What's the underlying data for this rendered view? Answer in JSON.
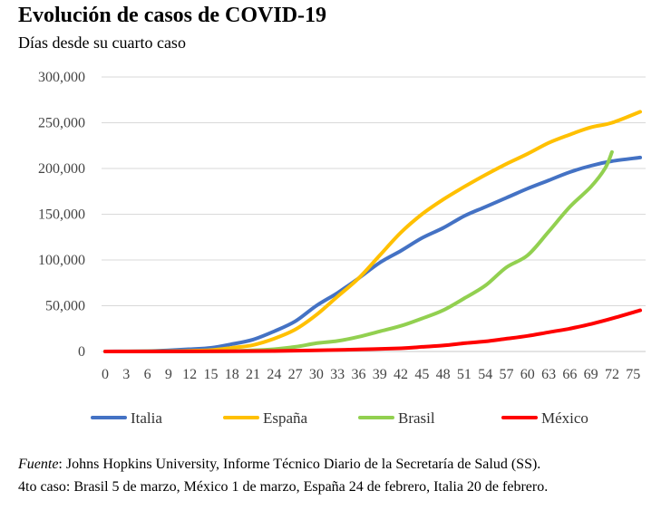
{
  "chart_data": {
    "type": "line",
    "title": "Evolución de casos de COVID-19",
    "subtitle": "Días desde su cuarto caso",
    "xlabel": "",
    "ylabel": "",
    "ylim": [
      0,
      300000
    ],
    "yticks": [
      0,
      50000,
      100000,
      150000,
      200000,
      250000,
      300000
    ],
    "ytick_labels": [
      "0",
      "50,000",
      "100,000",
      "150,000",
      "200,000",
      "250,000",
      "300,000"
    ],
    "xlim": [
      0,
      76
    ],
    "xticks": [
      0,
      3,
      6,
      9,
      12,
      15,
      18,
      21,
      24,
      27,
      30,
      33,
      36,
      39,
      42,
      45,
      48,
      51,
      54,
      57,
      60,
      63,
      66,
      69,
      72,
      75
    ],
    "xtick_labels": [
      "0",
      "3",
      "6",
      "9",
      "12",
      "15",
      "18",
      "21",
      "24",
      "27",
      "30",
      "33",
      "36",
      "39",
      "42",
      "45",
      "48",
      "51",
      "54",
      "57",
      "60",
      "63",
      "66",
      "69",
      "72",
      "75"
    ],
    "grid": "horizontal",
    "legend_position": "bottom",
    "series": [
      {
        "name": "Italia",
        "color": "#4472C4",
        "points": [
          [
            0,
            0
          ],
          [
            6,
            400
          ],
          [
            9,
            1200
          ],
          [
            12,
            2500
          ],
          [
            15,
            4000
          ],
          [
            18,
            8000
          ],
          [
            21,
            13000
          ],
          [
            24,
            22000
          ],
          [
            27,
            33000
          ],
          [
            30,
            50000
          ],
          [
            33,
            64000
          ],
          [
            36,
            80000
          ],
          [
            39,
            97000
          ],
          [
            42,
            110000
          ],
          [
            45,
            124000
          ],
          [
            48,
            135000
          ],
          [
            51,
            148000
          ],
          [
            54,
            158000
          ],
          [
            57,
            168000
          ],
          [
            60,
            178000
          ],
          [
            63,
            187000
          ],
          [
            66,
            196000
          ],
          [
            69,
            203000
          ],
          [
            72,
            208000
          ],
          [
            76,
            212000
          ]
        ]
      },
      {
        "name": "España",
        "color": "#FFC000",
        "points": [
          [
            0,
            0
          ],
          [
            9,
            300
          ],
          [
            12,
            700
          ],
          [
            15,
            1500
          ],
          [
            18,
            4000
          ],
          [
            21,
            7000
          ],
          [
            24,
            14000
          ],
          [
            27,
            24000
          ],
          [
            30,
            40000
          ],
          [
            33,
            60000
          ],
          [
            36,
            80000
          ],
          [
            39,
            105000
          ],
          [
            42,
            130000
          ],
          [
            45,
            150000
          ],
          [
            48,
            166000
          ],
          [
            51,
            180000
          ],
          [
            54,
            193000
          ],
          [
            57,
            205000
          ],
          [
            60,
            216000
          ],
          [
            63,
            228000
          ],
          [
            66,
            237000
          ],
          [
            69,
            245000
          ],
          [
            72,
            250000
          ],
          [
            76,
            262000
          ]
        ]
      },
      {
        "name": "Brasil",
        "color": "#92D050",
        "points": [
          [
            0,
            0
          ],
          [
            9,
            100
          ],
          [
            15,
            200
          ],
          [
            18,
            500
          ],
          [
            21,
            1200
          ],
          [
            24,
            2500
          ],
          [
            27,
            5000
          ],
          [
            30,
            9000
          ],
          [
            33,
            11500
          ],
          [
            36,
            16000
          ],
          [
            39,
            22000
          ],
          [
            42,
            28000
          ],
          [
            45,
            36000
          ],
          [
            48,
            45000
          ],
          [
            51,
            58000
          ],
          [
            54,
            72000
          ],
          [
            57,
            92000
          ],
          [
            60,
            105000
          ],
          [
            63,
            131000
          ],
          [
            66,
            158000
          ],
          [
            69,
            180000
          ],
          [
            71,
            200000
          ],
          [
            72,
            218000
          ]
        ]
      },
      {
        "name": "México",
        "color": "#FF0000",
        "points": [
          [
            0,
            0
          ],
          [
            12,
            100
          ],
          [
            18,
            300
          ],
          [
            24,
            500
          ],
          [
            30,
            1200
          ],
          [
            36,
            2200
          ],
          [
            42,
            3500
          ],
          [
            45,
            5000
          ],
          [
            48,
            6500
          ],
          [
            51,
            9000
          ],
          [
            54,
            11000
          ],
          [
            57,
            14000
          ],
          [
            60,
            17000
          ],
          [
            63,
            21000
          ],
          [
            66,
            25000
          ],
          [
            69,
            30000
          ],
          [
            72,
            36000
          ],
          [
            76,
            45000
          ]
        ]
      }
    ]
  },
  "notes": {
    "source_label": "Fuente",
    "source_text": ": Johns Hopkins University, Informe Técnico Diario de la Secretaría de Salud (SS).",
    "fourth_case": "4to caso: Brasil 5 de marzo, México 1 de marzo, España 24 de febrero, Italia 20 de febrero."
  }
}
